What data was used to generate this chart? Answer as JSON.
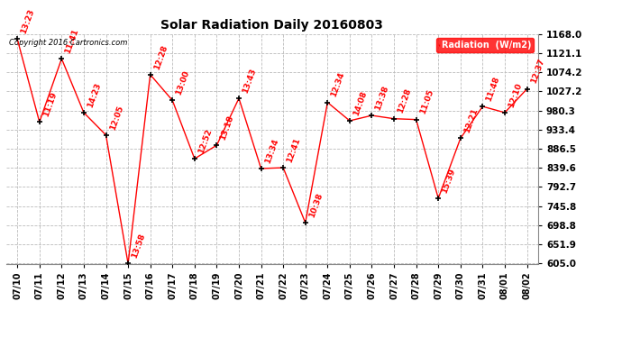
{
  "title": "Solar Radiation Daily 20160803",
  "copyright": "Copyright 2016 Cartronics.com",
  "legend_label": "Radiation  (W/m2)",
  "x_labels": [
    "07/10",
    "07/11",
    "07/12",
    "07/13",
    "07/14",
    "07/15",
    "07/16",
    "07/17",
    "07/18",
    "07/19",
    "07/20",
    "07/21",
    "07/22",
    "07/23",
    "07/24",
    "07/25",
    "07/26",
    "07/27",
    "07/28",
    "07/29",
    "07/30",
    "07/31",
    "08/01",
    "08/02"
  ],
  "y_values": [
    1155,
    952,
    1107,
    975,
    920,
    605,
    1068,
    1005,
    862,
    895,
    1010,
    838,
    840,
    705,
    1000,
    955,
    968,
    960,
    958,
    765,
    912,
    990,
    975,
    1033
  ],
  "annotations": [
    "13:23",
    "11:19",
    "11:41",
    "14:23",
    "12:05",
    "13:58",
    "12:28",
    "13:00",
    "12:52",
    "13:18",
    "13:43",
    "13:34",
    "12:41",
    "10:38",
    "12:34",
    "14:08",
    "13:38",
    "12:28",
    "11:05",
    "15:39",
    "12:21",
    "11:48",
    "12:10",
    "12:37"
  ],
  "ylim": [
    605.0,
    1168.0
  ],
  "yticks": [
    605.0,
    651.9,
    698.8,
    745.8,
    792.7,
    839.6,
    886.5,
    933.4,
    980.3,
    1027.2,
    1074.2,
    1121.1,
    1168.0
  ],
  "line_color": "red",
  "marker_color": "black",
  "bg_color": "#ffffff",
  "grid_color": "#bbbbbb",
  "annotation_color": "red",
  "legend_bg": "red",
  "legend_fg": "white"
}
